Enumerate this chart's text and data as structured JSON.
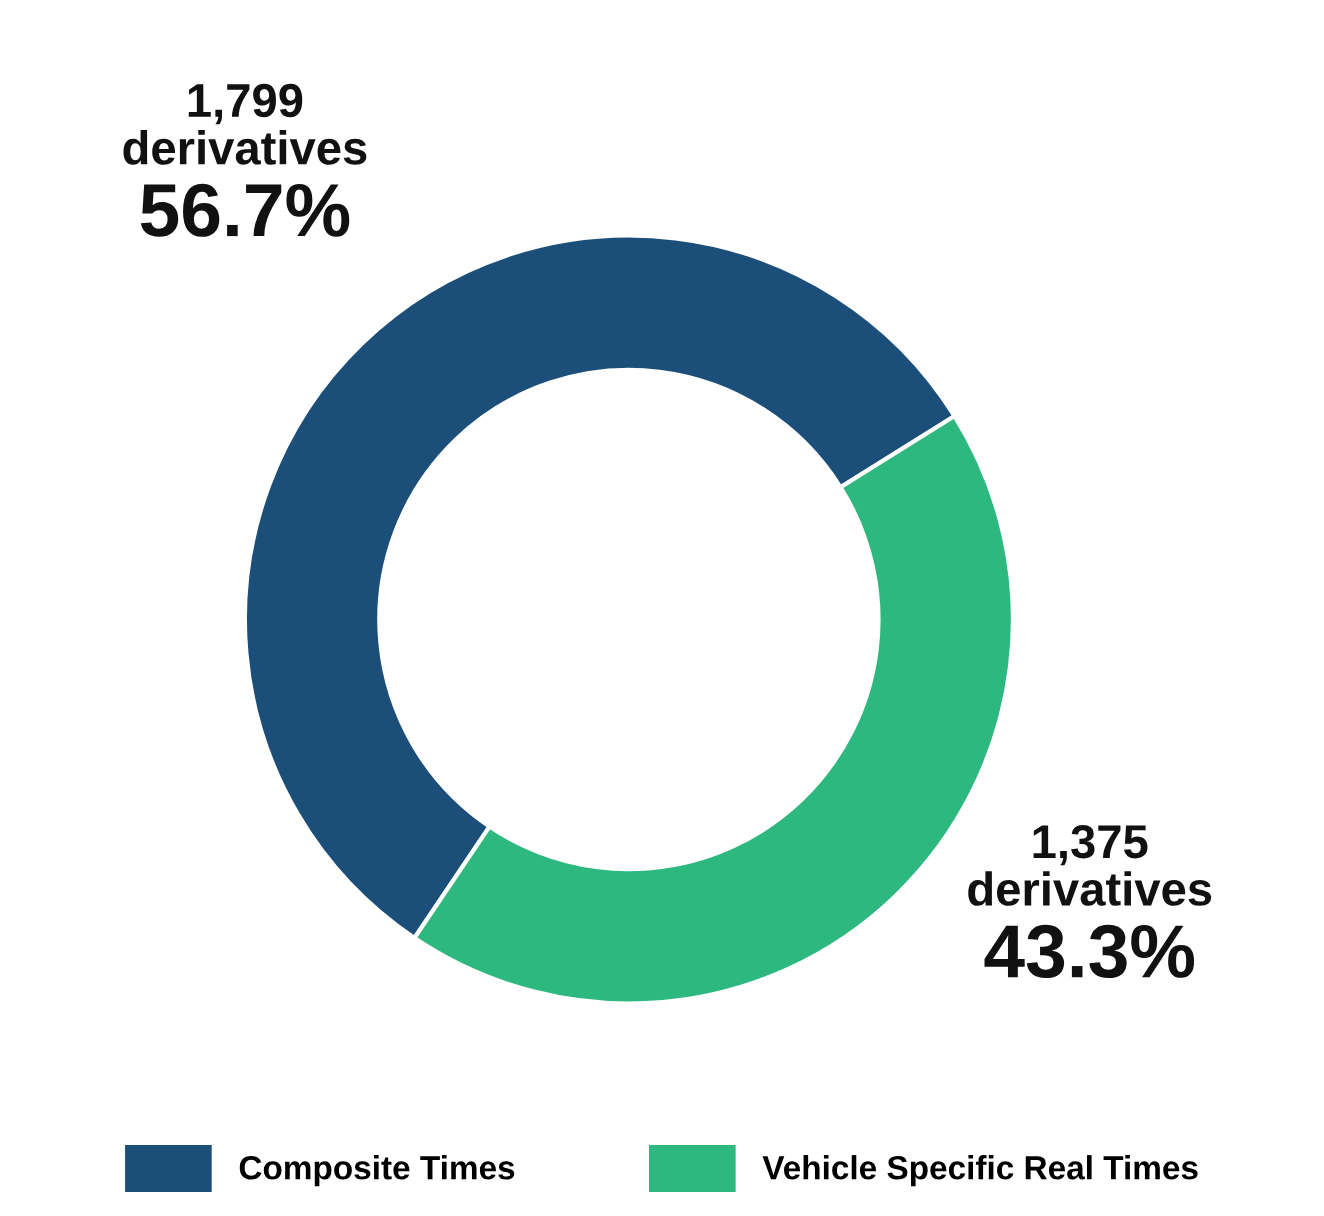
{
  "chart_data": {
    "type": "donut",
    "categories": [
      "Composite Times",
      "Vehicle Specific Real Times"
    ],
    "values": [
      1799,
      1375
    ],
    "colors": [
      "#1b4f79",
      "#2db87f"
    ],
    "value_labels": [
      "1,799\nderivatives\n56.7%",
      "1,375\nderivatives\n43.3%"
    ],
    "legend": "bottom"
  }
}
